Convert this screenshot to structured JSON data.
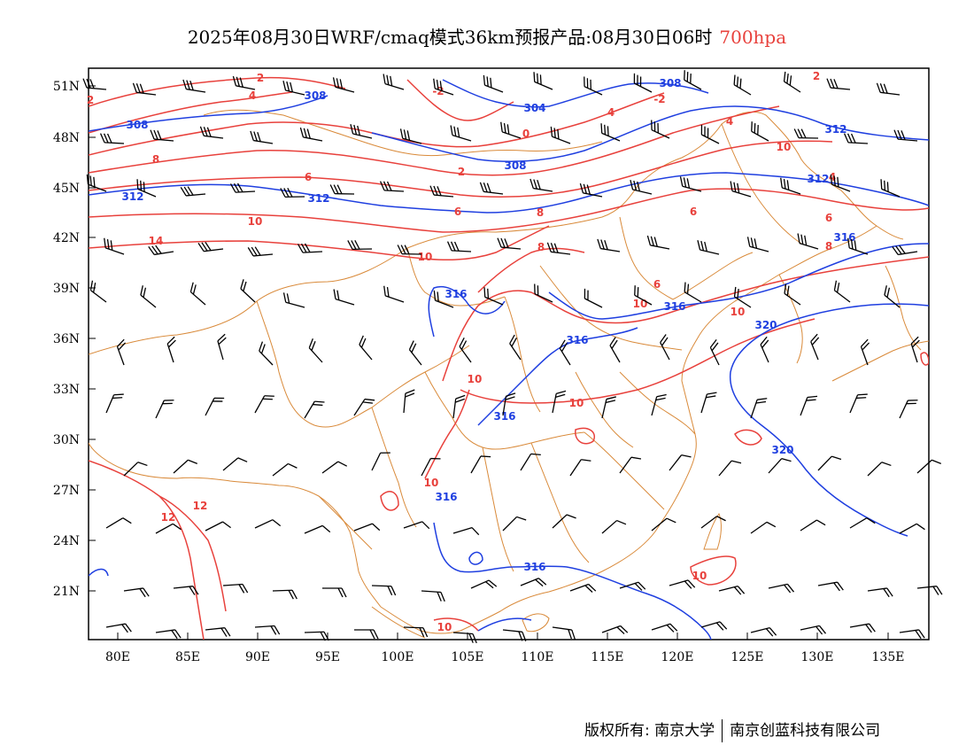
{
  "title": {
    "main": "2025年08月30日WRF/cmaq模式36km预报产品:08月30日06时",
    "level": "700hpa"
  },
  "colors": {
    "temperature": "#e8413c",
    "geopotential": "#1f3fe0",
    "border": "#d98a3a",
    "wind": "#000000"
  },
  "axes": {
    "lat_ticks": [
      "51N",
      "48N",
      "45N",
      "42N",
      "39N",
      "36N",
      "33N",
      "30N",
      "27N",
      "24N",
      "21N"
    ],
    "lon_ticks": [
      "80E",
      "85E",
      "90E",
      "95E",
      "100E",
      "105E",
      "110E",
      "115E",
      "120E",
      "125E",
      "130E",
      "135E"
    ]
  },
  "temperature_labels": [
    "2",
    "4",
    "-2",
    "2",
    "4",
    "0",
    "2",
    "4",
    "-2",
    "8",
    "6",
    "2",
    "10",
    "6",
    "8",
    "6",
    "10",
    "8",
    "6",
    "8",
    "6",
    "14",
    "10",
    "10",
    "10",
    "10",
    "12",
    "12",
    "10",
    "10",
    "10",
    "10",
    "4"
  ],
  "height_labels": [
    "308",
    "308",
    "304",
    "308",
    "308",
    "312",
    "312",
    "312",
    "312",
    "316",
    "316",
    "316",
    "316",
    "320",
    "316",
    "320",
    "316",
    "316"
  ],
  "footer": {
    "left": "版权所有: 南京大学",
    "right": "南京创蓝科技有限公司"
  }
}
